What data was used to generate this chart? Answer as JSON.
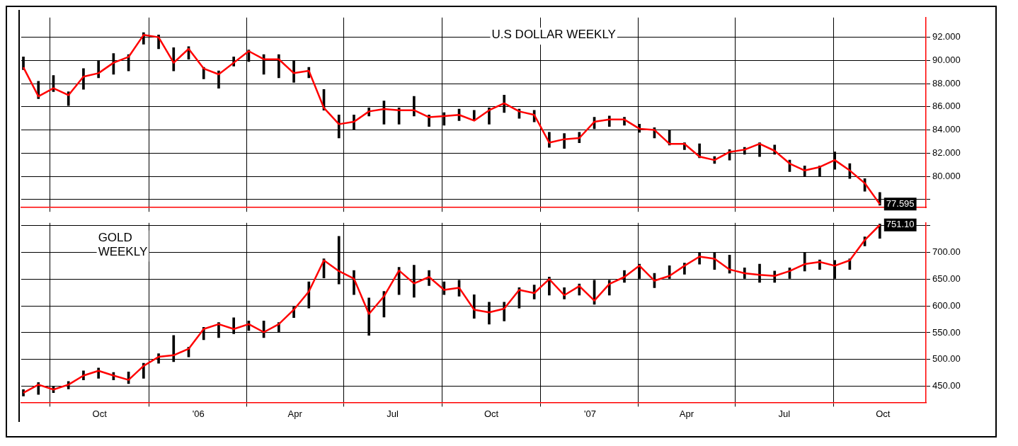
{
  "chart_data": [
    {
      "type": "bar",
      "title": "U.S DOLLAR WEEKLY",
      "x": [
        "2005-07-22",
        "2005-08-05",
        "2005-08-19",
        "2005-09-02",
        "2005-09-16",
        "2005-09-30",
        "2005-10-14",
        "2005-10-28",
        "2005-11-11",
        "2005-11-25",
        "2005-12-09",
        "2005-12-23",
        "2006-01-06",
        "2006-01-20",
        "2006-02-03",
        "2006-02-17",
        "2006-03-03",
        "2006-03-17",
        "2006-03-31",
        "2006-04-14",
        "2006-04-28",
        "2006-05-12",
        "2006-05-26",
        "2006-06-09",
        "2006-06-23",
        "2006-07-07",
        "2006-07-21",
        "2006-08-04",
        "2006-08-18",
        "2006-09-01",
        "2006-09-15",
        "2006-09-29",
        "2006-10-13",
        "2006-10-27",
        "2006-11-10",
        "2006-11-24",
        "2006-12-08",
        "2006-12-22",
        "2007-01-05",
        "2007-01-19",
        "2007-02-02",
        "2007-02-16",
        "2007-03-02",
        "2007-03-16",
        "2007-03-30",
        "2007-04-13",
        "2007-04-27",
        "2007-05-11",
        "2007-05-25",
        "2007-06-08",
        "2007-06-22",
        "2007-07-06",
        "2007-07-20",
        "2007-08-03",
        "2007-08-17",
        "2007-08-31",
        "2007-09-14",
        "2007-09-28"
      ],
      "series": [
        {
          "color": "#000000",
          "base": [
            89.2,
            86.7,
            87.3,
            86.1,
            87.5,
            88.5,
            88.8,
            89.1,
            91.4,
            91.0,
            89.1,
            90.1,
            88.4,
            87.6,
            89.5,
            89.9,
            88.8,
            88.5,
            88.1,
            88.5,
            85.7,
            83.3,
            84.0,
            85.2,
            84.5,
            84.5,
            85.2,
            84.3,
            84.4,
            84.8,
            84.8,
            84.5,
            85.5,
            85.0,
            84.7,
            82.5,
            82.4,
            82.9,
            84.1,
            84.3,
            84.4,
            83.8,
            83.3,
            82.7,
            82.3,
            81.6,
            81.1,
            81.4,
            81.9,
            81.7,
            81.9,
            80.4,
            80.0,
            80.0,
            80.6,
            79.8,
            78.7,
            77.5
          ],
          "values": [
            1.1,
            1.5,
            1.4,
            1.2,
            1.8,
            1.5,
            1.8,
            1.4,
            1.0,
            1.2,
            2.0,
            1.1,
            1.0,
            1.5,
            0.8,
            1.0,
            1.7,
            2.0,
            1.9,
            0.9,
            1.8,
            2.0,
            1.3,
            0.7,
            2.0,
            1.4,
            1.7,
            1.0,
            1.1,
            1.0,
            0.9,
            1.4,
            1.5,
            0.8,
            1.0,
            1.3,
            1.3,
            0.9,
            1.0,
            0.9,
            0.7,
            0.7,
            0.9,
            1.3,
            0.6,
            1.2,
            0.6,
            0.9,
            0.6,
            1.2,
            0.8,
            1.0,
            0.9,
            0.9,
            1.5,
            1.3,
            1.1,
            1.1
          ]
        },
        {
          "type": "line",
          "color": "#ff0000",
          "values": [
            89.4,
            86.9,
            87.6,
            87.0,
            88.6,
            88.9,
            89.8,
            90.3,
            92.2,
            92.0,
            89.8,
            91.0,
            89.3,
            88.8,
            89.8,
            90.8,
            90.1,
            90.1,
            88.9,
            89.1,
            85.9,
            84.5,
            84.7,
            85.6,
            85.8,
            85.7,
            85.7,
            85.1,
            85.2,
            85.3,
            84.8,
            85.7,
            86.3,
            85.6,
            85.3,
            82.9,
            83.2,
            83.3,
            84.7,
            84.9,
            84.9,
            84.1,
            84.0,
            82.8,
            82.8,
            81.7,
            81.4,
            82.1,
            82.3,
            82.8,
            82.2,
            81.1,
            80.5,
            80.8,
            81.4,
            80.5,
            79.4,
            77.595
          ],
          "value_labels": [
            null,
            null,
            null,
            null,
            null,
            null,
            null,
            null,
            null,
            null,
            null,
            null,
            null,
            null,
            null,
            null,
            null,
            null,
            null,
            null,
            null,
            null,
            null,
            null,
            null,
            null,
            null,
            null,
            null,
            null,
            null,
            null,
            null,
            null,
            null,
            null,
            null,
            null,
            null,
            null,
            null,
            null,
            null,
            null,
            null,
            null,
            null,
            null,
            null,
            null,
            null,
            null,
            null,
            null,
            null,
            null,
            null,
            "77.595"
          ]
        }
      ],
      "xlim": [
        "2005-07-20",
        "2007-11-10"
      ],
      "xticks": [
        {
          "value": "2005-10-01",
          "label": null
        },
        {
          "value": "2006-01-01",
          "label": null
        },
        {
          "value": "2006-04-01",
          "label": null
        },
        {
          "value": "2006-07-01",
          "label": null
        },
        {
          "value": "2006-10-01",
          "label": null
        },
        {
          "value": "2007-01-01",
          "label": null
        },
        {
          "value": "2007-04-01",
          "label": null
        },
        {
          "value": "2007-07-01",
          "label": null
        },
        {
          "value": "2007-10-01",
          "label": null
        }
      ],
      "ylim": [
        77.3,
        93.7
      ],
      "yticks": [
        {
          "value": 78,
          "label": null
        },
        {
          "value": 80,
          "label": "80.000"
        },
        {
          "value": 82,
          "label": "82.000"
        },
        {
          "value": 84,
          "label": "84.000"
        },
        {
          "value": 86,
          "label": "86.000"
        },
        {
          "value": 88,
          "label": "88.000"
        },
        {
          "value": 90,
          "label": "90.000"
        },
        {
          "value": 92,
          "label": "92.000"
        }
      ],
      "grid": true,
      "tick_labels": "y",
      "marker": "none",
      "line_style": "solid"
    },
    {
      "type": "bar",
      "title": "GOLD WEEKLY",
      "x": [
        "2005-07-22",
        "2005-08-05",
        "2005-08-19",
        "2005-09-02",
        "2005-09-16",
        "2005-09-30",
        "2005-10-14",
        "2005-10-28",
        "2005-11-11",
        "2005-11-25",
        "2005-12-09",
        "2005-12-23",
        "2006-01-06",
        "2006-01-20",
        "2006-02-03",
        "2006-02-17",
        "2006-03-03",
        "2006-03-17",
        "2006-03-31",
        "2006-04-14",
        "2006-04-28",
        "2006-05-12",
        "2006-05-26",
        "2006-06-09",
        "2006-06-23",
        "2006-07-07",
        "2006-07-21",
        "2006-08-04",
        "2006-08-18",
        "2006-09-01",
        "2006-09-15",
        "2006-09-29",
        "2006-10-13",
        "2006-10-27",
        "2006-11-10",
        "2006-11-24",
        "2006-12-08",
        "2006-12-22",
        "2007-01-05",
        "2007-01-19",
        "2007-02-02",
        "2007-02-16",
        "2007-03-02",
        "2007-03-16",
        "2007-03-30",
        "2007-04-13",
        "2007-04-27",
        "2007-05-11",
        "2007-05-25",
        "2007-06-08",
        "2007-06-22",
        "2007-07-06",
        "2007-07-20",
        "2007-08-03",
        "2007-08-17",
        "2007-08-31",
        "2007-09-14",
        "2007-09-28"
      ],
      "series": [
        {
          "color": "#000000",
          "base": [
            432,
            435,
            438,
            445,
            462,
            465,
            462,
            455,
            465,
            493,
            496,
            505,
            537,
            541,
            548,
            554,
            541,
            551,
            578,
            596,
            652,
            641,
            621,
            545,
            579,
            621,
            616,
            638,
            621,
            618,
            577,
            566,
            572,
            596,
            613,
            620,
            613,
            620,
            603,
            620,
            644,
            651,
            634,
            651,
            659,
            678,
            668,
            661,
            651,
            644,
            644,
            651,
            665,
            668,
            651,
            668,
            712,
            726
          ],
          "values": [
            12,
            22,
            12,
            14,
            17,
            19,
            14,
            22,
            28,
            18,
            49,
            18,
            23,
            28,
            30,
            18,
            31,
            18,
            20,
            49,
            36,
            89,
            45,
            70,
            48,
            51,
            60,
            28,
            24,
            30,
            44,
            41,
            35,
            38,
            26,
            34,
            21,
            21,
            45,
            28,
            22,
            27,
            27,
            24,
            21,
            21,
            31,
            34,
            20,
            34,
            21,
            20,
            34,
            18,
            34,
            20,
            17,
            27
          ]
        },
        {
          "type": "line",
          "color": "#ff0000",
          "values": [
            438,
            453,
            444,
            453,
            470,
            479,
            470,
            462,
            488,
            505,
            508,
            520,
            557,
            566,
            557,
            566,
            551,
            566,
            593,
            627,
            685,
            665,
            651,
            585,
            618,
            666,
            642,
            654,
            630,
            634,
            593,
            588,
            595,
            630,
            624,
            650,
            620,
            637,
            610,
            641,
            654,
            675,
            647,
            656,
            675,
            692,
            688,
            668,
            661,
            658,
            656,
            665,
            678,
            682,
            675,
            685,
            723,
            751.1
          ],
          "value_labels": [
            null,
            null,
            null,
            null,
            null,
            null,
            null,
            null,
            null,
            null,
            null,
            null,
            null,
            null,
            null,
            null,
            null,
            null,
            null,
            null,
            null,
            null,
            null,
            null,
            null,
            null,
            null,
            null,
            null,
            null,
            null,
            null,
            null,
            null,
            null,
            null,
            null,
            null,
            null,
            null,
            null,
            null,
            null,
            null,
            null,
            null,
            null,
            null,
            null,
            null,
            null,
            null,
            null,
            null,
            null,
            null,
            null,
            "751.10"
          ]
        }
      ],
      "xlim": [
        "2005-07-20",
        "2007-11-10"
      ],
      "xticks": [
        {
          "value": "2005-10-01",
          "label": "Oct"
        },
        {
          "value": "2006-01-01",
          "label": "'06"
        },
        {
          "value": "2006-04-01",
          "label": "Apr"
        },
        {
          "value": "2006-07-01",
          "label": "Jul"
        },
        {
          "value": "2006-10-01",
          "label": "Oct"
        },
        {
          "value": "2007-01-01",
          "label": "'07"
        },
        {
          "value": "2007-04-01",
          "label": "Apr"
        },
        {
          "value": "2007-07-01",
          "label": "Jul"
        },
        {
          "value": "2007-10-01",
          "label": "Oct"
        }
      ],
      "ylim": [
        420,
        755
      ],
      "yticks": [
        {
          "value": 450,
          "label": "450.00"
        },
        {
          "value": 500,
          "label": "500.00"
        },
        {
          "value": 550,
          "label": "550.00"
        },
        {
          "value": 600,
          "label": "600.00"
        },
        {
          "value": 650,
          "label": "650.00"
        },
        {
          "value": 700,
          "label": "700.00"
        },
        {
          "value": 750,
          "label": null
        }
      ],
      "grid": true,
      "marker": "none",
      "line_style": "solid"
    }
  ]
}
